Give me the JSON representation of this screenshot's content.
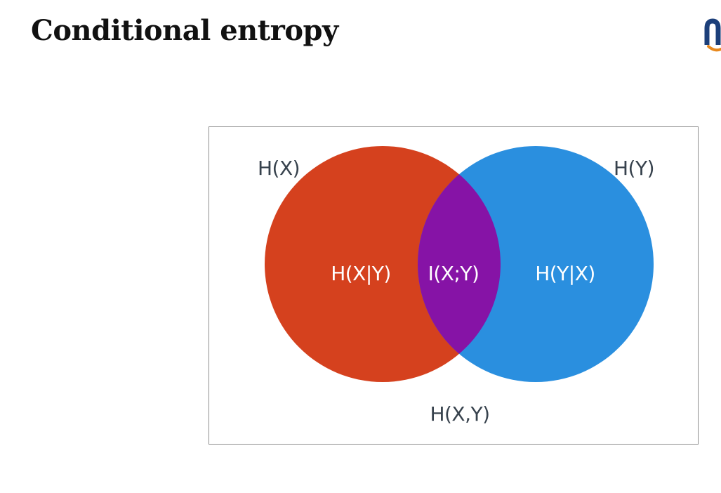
{
  "slide": {
    "title": "Conditional entropy"
  },
  "logo": {
    "icon": "university-logo-icon",
    "colors": {
      "primary": "#1c3f7a",
      "accent": "#e8891e"
    }
  },
  "diagram": {
    "type": "venn",
    "labels": {
      "hx": "H(X)",
      "hy": "H(Y)",
      "hx_given_y": "H(X|Y)",
      "mutual_info": "I(X;Y)",
      "hy_given_x": "H(Y|X)",
      "joint": "H(X,Y)"
    },
    "colors": {
      "left_circle": "#d5411e",
      "right_circle": "#2a8fdf",
      "overlap": "#8613a6",
      "text_dark": "#37424d",
      "text_light": "#ffffff",
      "frame_border": "#8f8f8f"
    }
  }
}
